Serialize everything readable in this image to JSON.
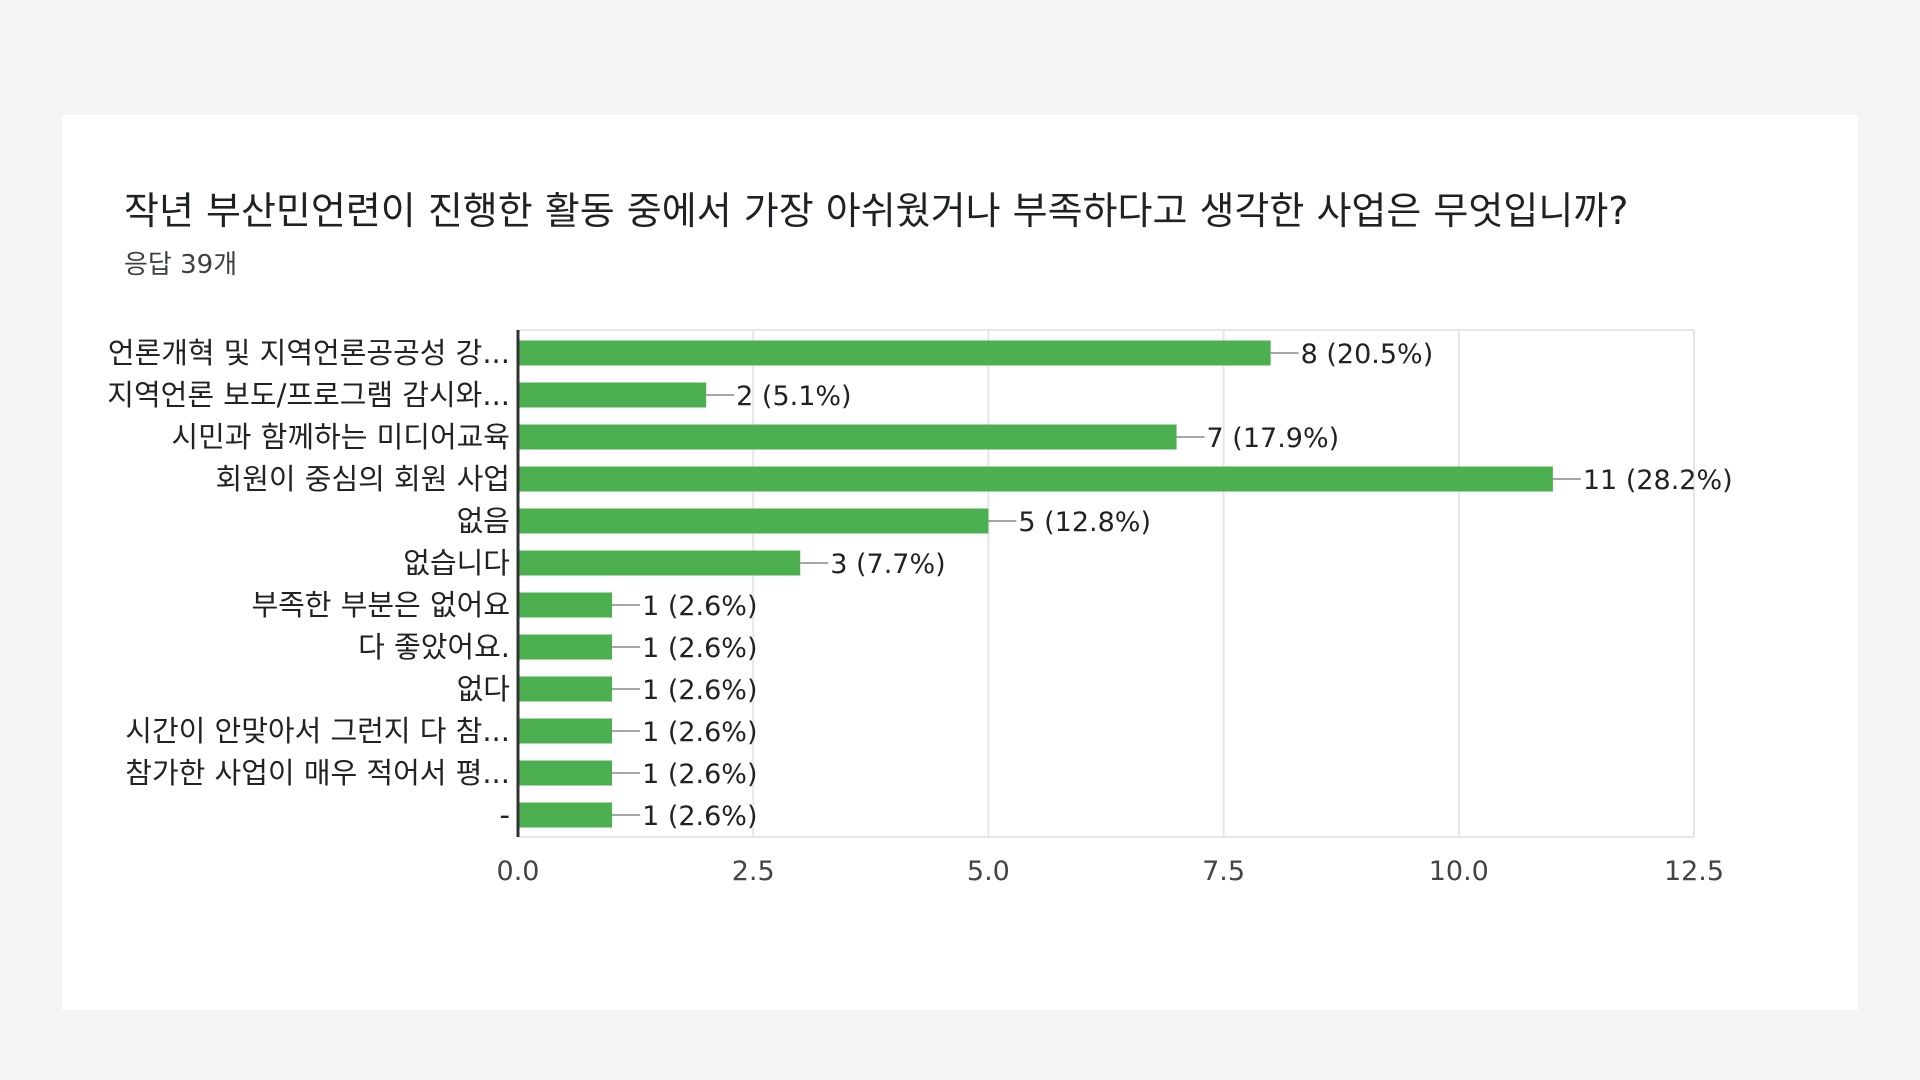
{
  "chart_data": {
    "type": "bar",
    "orientation": "horizontal",
    "title": "작년 부산민언련이 진행한 활동 중에서 가장 아쉬웠거나 부족하다고 생각한 사업은 무엇입니까?",
    "subtitle": "응답 39개",
    "categories": [
      "언론개혁 및 지역언론공공성 강...",
      "지역언론 보도/프로그램 감시와...",
      "시민과 함께하는 미디어교육",
      "회원이 중심의 회원 사업",
      "없음",
      "없습니다",
      "부족한 부분은 없어요",
      "다 좋았어요.",
      "없다",
      "시간이 안맞아서 그런지 다 참...",
      "참가한 사업이 매우 적어서 평...",
      "-"
    ],
    "values": [
      8,
      2,
      7,
      11,
      5,
      3,
      1,
      1,
      1,
      1,
      1,
      1
    ],
    "value_labels": [
      "8 (20.5%)",
      "2 (5.1%)",
      "7 (17.9%)",
      "11 (28.2%)",
      "5 (12.8%)",
      "3 (7.7%)",
      "1 (2.6%)",
      "1 (2.6%)",
      "1 (2.6%)",
      "1 (2.6%)",
      "1 (2.6%)",
      "1 (2.6%)"
    ],
    "xlim": [
      0,
      12.5
    ],
    "xticks": [
      "0.0",
      "2.5",
      "5.0",
      "7.5",
      "10.0",
      "12.5"
    ],
    "grid": true,
    "bar_color": "#4caf50"
  }
}
